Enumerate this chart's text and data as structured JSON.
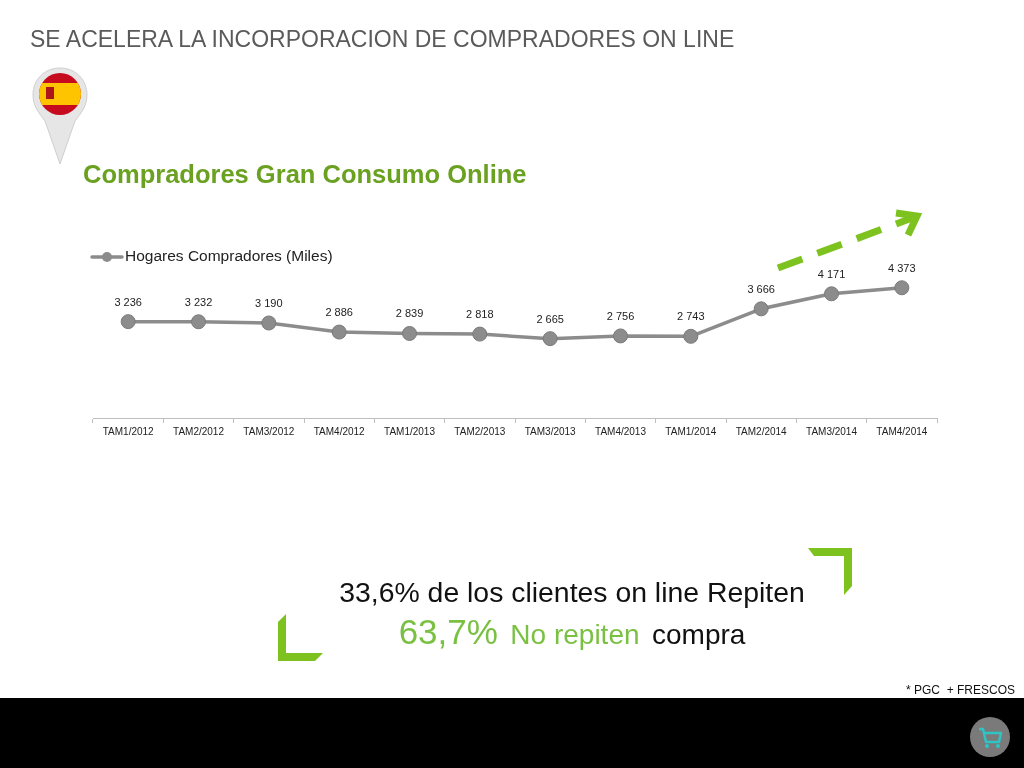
{
  "chart_data": {
    "type": "line",
    "title": "SE ACELERA LA INCORPORACION DE COMPRADORES ON LINE",
    "subtitle": "Compradores Gran Consumo Online",
    "categories": [
      "TAM1/2012",
      "TAM2/2012",
      "TAM3/2012",
      "TAM4/2012",
      "TAM1/2013",
      "TAM2/2013",
      "TAM3/2013",
      "TAM4/2013",
      "TAM1/2014",
      "TAM2/2014",
      "TAM3/2014",
      "TAM4/2014"
    ],
    "series": [
      {
        "name": "Hogares Compradores (Miles)",
        "color": "#8c8c8c",
        "values": [
          3236,
          3232,
          3190,
          2886,
          2839,
          2818,
          2665,
          2756,
          2743,
          3666,
          4171,
          4373
        ]
      }
    ],
    "data_labels": true,
    "legend": "top left",
    "marker": "circle",
    "line_style": "solid",
    "annotations": [
      "33,6% de los clientes on line Repiten",
      "63,7%",
      "No repiten",
      "compra",
      "* PGC  + FRESCOS"
    ]
  }
}
